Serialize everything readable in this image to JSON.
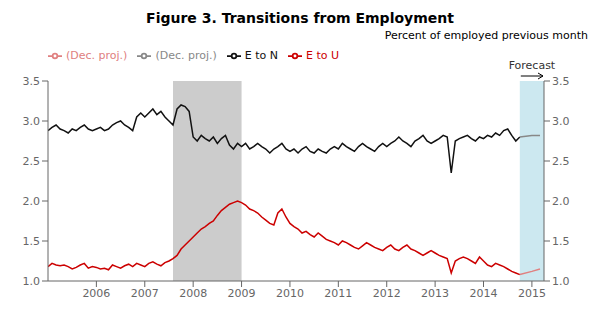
{
  "chart_data": {
    "type": "line",
    "title": "Figure 3.  Transitions from Employment",
    "y2label": "Percent of employed previous month",
    "xlim": [
      2005.0,
      2015.25
    ],
    "xticks": [
      2006,
      2007,
      2008,
      2009,
      2010,
      2011,
      2012,
      2013,
      2014,
      2015
    ],
    "ylim": [
      1.0,
      3.5
    ],
    "yticks": [
      {
        "value": 1.0,
        "label": "1.0"
      },
      1.5,
      {
        "value": 2.0,
        "label": "2.0"
      },
      2.5,
      {
        "value": 3.0,
        "label": "3.0"
      },
      3.5
    ],
    "y2lim": [
      1.0,
      3.5
    ],
    "y2ticks": [
      {
        "value": 1.0,
        "label": "1.0"
      },
      1.5,
      {
        "value": 2.0,
        "label": "2.0"
      },
      2.5,
      {
        "value": 3.0,
        "label": "3.0"
      },
      3.5
    ],
    "grid": false,
    "legend": "upper left",
    "shaded_regions": [
      {
        "x0": 2007.583,
        "x1": 2009.0,
        "color": "#cccccc"
      },
      {
        "x0": 2014.75,
        "x1": 2015.25,
        "color": "#cce8f0",
        "label": "Forecast"
      }
    ],
    "series": [
      {
        "name": "E to U",
        "color": "#cc0000",
        "x": [
          2005.0,
          2005.083,
          2005.167,
          2005.25,
          2005.333,
          2005.417,
          2005.5,
          2005.583,
          2005.667,
          2005.75,
          2005.833,
          2005.917,
          2006.0,
          2006.083,
          2006.167,
          2006.25,
          2006.333,
          2006.417,
          2006.5,
          2006.583,
          2006.667,
          2006.75,
          2006.833,
          2006.917,
          2007.0,
          2007.083,
          2007.167,
          2007.25,
          2007.333,
          2007.417,
          2007.5,
          2007.583,
          2007.667,
          2007.75,
          2007.833,
          2007.917,
          2008.0,
          2008.083,
          2008.167,
          2008.25,
          2008.333,
          2008.417,
          2008.5,
          2008.583,
          2008.667,
          2008.75,
          2008.833,
          2008.917,
          2009.0,
          2009.083,
          2009.167,
          2009.25,
          2009.333,
          2009.417,
          2009.5,
          2009.583,
          2009.667,
          2009.75,
          2009.833,
          2009.917,
          2010.0,
          2010.083,
          2010.167,
          2010.25,
          2010.333,
          2010.417,
          2010.5,
          2010.583,
          2010.667,
          2010.75,
          2010.833,
          2010.917,
          2011.0,
          2011.083,
          2011.167,
          2011.25,
          2011.333,
          2011.417,
          2011.5,
          2011.583,
          2011.667,
          2011.75,
          2011.833,
          2011.917,
          2012.0,
          2012.083,
          2012.167,
          2012.25,
          2012.333,
          2012.417,
          2012.5,
          2012.583,
          2012.667,
          2012.75,
          2012.833,
          2012.917,
          2013.0,
          2013.083,
          2013.167,
          2013.25,
          2013.333,
          2013.417,
          2013.5,
          2013.583,
          2013.667,
          2013.75,
          2013.833,
          2013.917,
          2014.0,
          2014.083,
          2014.167,
          2014.25,
          2014.333,
          2014.417,
          2014.5,
          2014.583,
          2014.667,
          2014.75
        ],
        "values": [
          1.18,
          1.22,
          1.2,
          1.19,
          1.2,
          1.18,
          1.15,
          1.17,
          1.2,
          1.22,
          1.16,
          1.18,
          1.17,
          1.15,
          1.16,
          1.14,
          1.2,
          1.18,
          1.16,
          1.19,
          1.21,
          1.18,
          1.22,
          1.2,
          1.18,
          1.22,
          1.24,
          1.21,
          1.19,
          1.23,
          1.25,
          1.28,
          1.32,
          1.4,
          1.45,
          1.5,
          1.55,
          1.6,
          1.65,
          1.68,
          1.72,
          1.75,
          1.82,
          1.88,
          1.92,
          1.96,
          1.98,
          2.0,
          1.98,
          1.95,
          1.9,
          1.88,
          1.85,
          1.8,
          1.76,
          1.72,
          1.7,
          1.85,
          1.9,
          1.8,
          1.72,
          1.68,
          1.65,
          1.6,
          1.62,
          1.58,
          1.55,
          1.6,
          1.56,
          1.52,
          1.5,
          1.48,
          1.45,
          1.5,
          1.48,
          1.45,
          1.42,
          1.4,
          1.44,
          1.48,
          1.45,
          1.42,
          1.4,
          1.38,
          1.42,
          1.45,
          1.4,
          1.38,
          1.42,
          1.45,
          1.4,
          1.38,
          1.35,
          1.32,
          1.35,
          1.38,
          1.35,
          1.32,
          1.3,
          1.28,
          1.1,
          1.25,
          1.28,
          1.3,
          1.28,
          1.25,
          1.22,
          1.3,
          1.25,
          1.2,
          1.18,
          1.22,
          1.2,
          1.18,
          1.15,
          1.12,
          1.1,
          1.08
        ]
      },
      {
        "name": "(Dec. proj.)",
        "color": "#e08080",
        "x": [
          2014.75,
          2015.0,
          2015.167
        ],
        "values": [
          1.08,
          1.12,
          1.15
        ]
      },
      {
        "name": "E to N",
        "color": "#111111",
        "x": [
          2005.0,
          2005.083,
          2005.167,
          2005.25,
          2005.333,
          2005.417,
          2005.5,
          2005.583,
          2005.667,
          2005.75,
          2005.833,
          2005.917,
          2006.0,
          2006.083,
          2006.167,
          2006.25,
          2006.333,
          2006.417,
          2006.5,
          2006.583,
          2006.667,
          2006.75,
          2006.833,
          2006.917,
          2007.0,
          2007.083,
          2007.167,
          2007.25,
          2007.333,
          2007.417,
          2007.5,
          2007.583,
          2007.667,
          2007.75,
          2007.833,
          2007.917,
          2008.0,
          2008.083,
          2008.167,
          2008.25,
          2008.333,
          2008.417,
          2008.5,
          2008.583,
          2008.667,
          2008.75,
          2008.833,
          2008.917,
          2009.0,
          2009.083,
          2009.167,
          2009.25,
          2009.333,
          2009.417,
          2009.5,
          2009.583,
          2009.667,
          2009.75,
          2009.833,
          2009.917,
          2010.0,
          2010.083,
          2010.167,
          2010.25,
          2010.333,
          2010.417,
          2010.5,
          2010.583,
          2010.667,
          2010.75,
          2010.833,
          2010.917,
          2011.0,
          2011.083,
          2011.167,
          2011.25,
          2011.333,
          2011.417,
          2011.5,
          2011.583,
          2011.667,
          2011.75,
          2011.833,
          2011.917,
          2012.0,
          2012.083,
          2012.167,
          2012.25,
          2012.333,
          2012.417,
          2012.5,
          2012.583,
          2012.667,
          2012.75,
          2012.833,
          2012.917,
          2013.0,
          2013.083,
          2013.167,
          2013.25,
          2013.333,
          2013.417,
          2013.5,
          2013.583,
          2013.667,
          2013.75,
          2013.833,
          2013.917,
          2014.0,
          2014.083,
          2014.167,
          2014.25,
          2014.333,
          2014.417,
          2014.5,
          2014.583,
          2014.667,
          2014.75
        ],
        "values": [
          2.88,
          2.92,
          2.95,
          2.9,
          2.88,
          2.85,
          2.9,
          2.88,
          2.92,
          2.95,
          2.9,
          2.88,
          2.9,
          2.92,
          2.88,
          2.9,
          2.95,
          2.98,
          3.0,
          2.95,
          2.92,
          2.88,
          3.05,
          3.1,
          3.05,
          3.1,
          3.15,
          3.08,
          3.12,
          3.05,
          3.0,
          2.95,
          3.15,
          3.2,
          3.18,
          3.12,
          2.8,
          2.75,
          2.82,
          2.78,
          2.75,
          2.8,
          2.72,
          2.78,
          2.82,
          2.7,
          2.65,
          2.72,
          2.68,
          2.72,
          2.65,
          2.68,
          2.72,
          2.68,
          2.65,
          2.6,
          2.65,
          2.68,
          2.72,
          2.65,
          2.62,
          2.65,
          2.6,
          2.65,
          2.68,
          2.62,
          2.6,
          2.65,
          2.62,
          2.6,
          2.65,
          2.68,
          2.65,
          2.72,
          2.68,
          2.65,
          2.62,
          2.68,
          2.72,
          2.68,
          2.65,
          2.62,
          2.68,
          2.72,
          2.68,
          2.72,
          2.75,
          2.8,
          2.75,
          2.72,
          2.68,
          2.75,
          2.78,
          2.82,
          2.75,
          2.72,
          2.75,
          2.78,
          2.82,
          2.8,
          2.35,
          2.75,
          2.78,
          2.8,
          2.82,
          2.78,
          2.75,
          2.8,
          2.78,
          2.82,
          2.8,
          2.85,
          2.82,
          2.88,
          2.9,
          2.82,
          2.75,
          2.8
        ]
      },
      {
        "name": "(Dec. proj.)",
        "color": "#888888",
        "x": [
          2014.75,
          2015.0,
          2015.167
        ],
        "values": [
          2.8,
          2.82,
          2.82
        ]
      }
    ]
  }
}
